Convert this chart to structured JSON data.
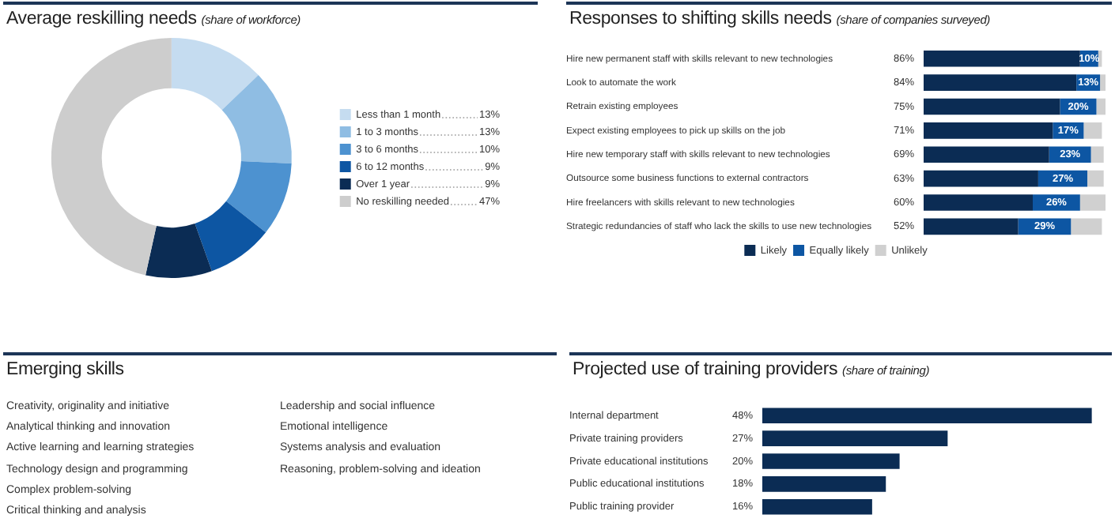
{
  "chart_data": [
    {
      "type": "donut",
      "title": "Average reskilling needs",
      "subtitle": "(share of workforce)",
      "categories": [
        "Less than 1 month",
        "1 to 3 months",
        "3 to 6 months",
        "6 to 12 months",
        "Over 1 year",
        "No reskilling needed"
      ],
      "values": [
        13,
        13,
        10,
        9,
        9,
        47
      ],
      "value_labels": [
        "13%",
        "13%",
        "10%",
        "9%",
        "9%",
        "47%"
      ],
      "colors": [
        "#c5dcf0",
        "#8fbde3",
        "#4d92d0",
        "#0d56a3",
        "#0b2c54",
        "#cdcdcd"
      ],
      "legend": "right"
    },
    {
      "type": "bar",
      "orientation": "horizontal",
      "stacked": true,
      "title": "Responses to shifting skills needs",
      "subtitle": "(share of companies surveyed)",
      "categories": [
        "Hire new permanent staff with skills relevant to new technologies",
        "Look to automate the work",
        "Retrain existing employees",
        "Expect existing employees to pick up skills on the job",
        "Hire new temporary staff with skills relevant to new technologies",
        "Outsource some business functions to external contractors",
        "Hire freelancers with skills relevant to new technologies",
        "Strategic redundancies of staff who lack the skills to use new technologies"
      ],
      "xlim": [
        0,
        100
      ],
      "tick_labels": "y",
      "legend": "bottom",
      "series": [
        {
          "name": "Likely",
          "color": "#0b2c54",
          "values": [
            86,
            84,
            75,
            71,
            69,
            63,
            60,
            52
          ],
          "value_labels": [
            "86%",
            "84%",
            "75%",
            "71%",
            "69%",
            "63%",
            "60%",
            "52%"
          ]
        },
        {
          "name": "Equally likely",
          "color": "#0d56a3",
          "values": [
            10,
            13,
            20,
            17,
            23,
            27,
            26,
            29
          ],
          "value_labels": [
            "10%",
            "13%",
            "20%",
            "17%",
            "23%",
            "27%",
            "26%",
            "29%"
          ]
        },
        {
          "name": "Unlikely",
          "color": "#d0d0d0",
          "values": [
            2,
            3,
            5,
            10,
            7,
            9,
            14,
            17
          ]
        }
      ]
    },
    {
      "type": "other",
      "title": "Emerging skills",
      "annotations": [
        "Creativity, originality and initiative",
        "Analytical thinking and innovation",
        "Active learning and learning strategies",
        "Technology design and programming",
        "Complex problem-solving",
        "Critical thinking and analysis",
        "Leadership and social influence",
        "Emotional intelligence",
        "Systems analysis and evaluation",
        "Reasoning, problem-solving and ideation"
      ]
    },
    {
      "type": "bar",
      "orientation": "horizontal",
      "title": "Projected use of training providers",
      "subtitle": "(share of training)",
      "categories": [
        "Internal department",
        "Private training providers",
        "Private educational institutions",
        "Public educational institutions",
        "Public training provider"
      ],
      "tick_labels": "y",
      "color": "#0b2c54",
      "values": [
        48,
        27,
        20,
        18,
        16
      ],
      "value_labels": [
        "48%",
        "27%",
        "20%",
        "18%",
        "16%"
      ]
    }
  ]
}
